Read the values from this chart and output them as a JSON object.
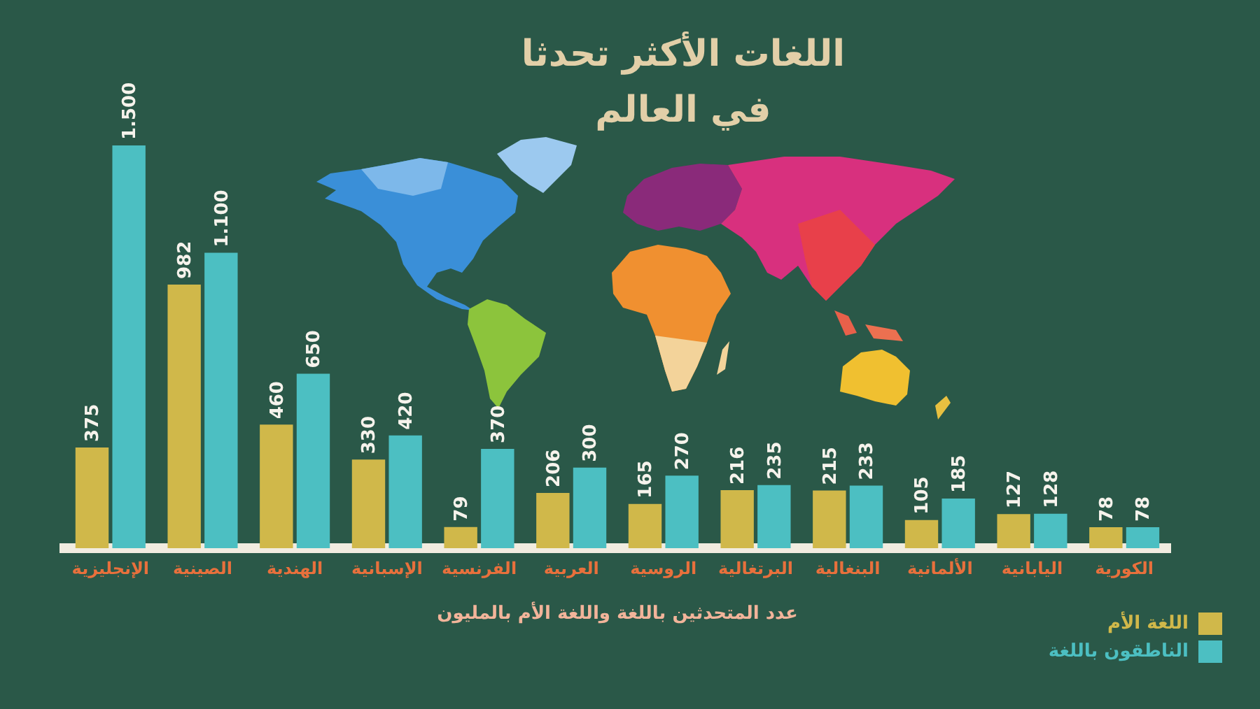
{
  "chart_data": {
    "type": "bar",
    "title": "اللغات الأكثر تحدثا\nفي العالم",
    "xlabel": "عدد المتحدثين باللغة واللغة الأم بالمليون",
    "categories": [
      "الإنجليزية",
      "الصينية",
      "الهندية",
      "الإسبانية",
      "الفرنسية",
      "العربية",
      "الروسية",
      "البرتغالية",
      "البنغالية",
      "الألمانية",
      "اليابانية",
      "الكورية"
    ],
    "series": [
      {
        "name": "اللغة الأم",
        "color": "#d0b84a",
        "values": [
          375,
          982,
          460,
          330,
          79,
          206,
          165,
          216,
          215,
          105,
          127,
          78
        ],
        "value_labels": [
          "375",
          "982",
          "460",
          "330",
          "79",
          "206",
          "165",
          "216",
          "215",
          "105",
          "127",
          "78"
        ]
      },
      {
        "name": "الناطقون باللغة",
        "color": "#4cbfc2",
        "values": [
          1500,
          1100,
          650,
          420,
          370,
          300,
          270,
          235,
          233,
          185,
          128,
          78
        ],
        "value_labels": [
          "1.500",
          "1.100",
          "650",
          "420",
          "370",
          "300",
          "270",
          "235",
          "233",
          "185",
          "128",
          "78"
        ]
      }
    ],
    "legend": "bottom right"
  }
}
